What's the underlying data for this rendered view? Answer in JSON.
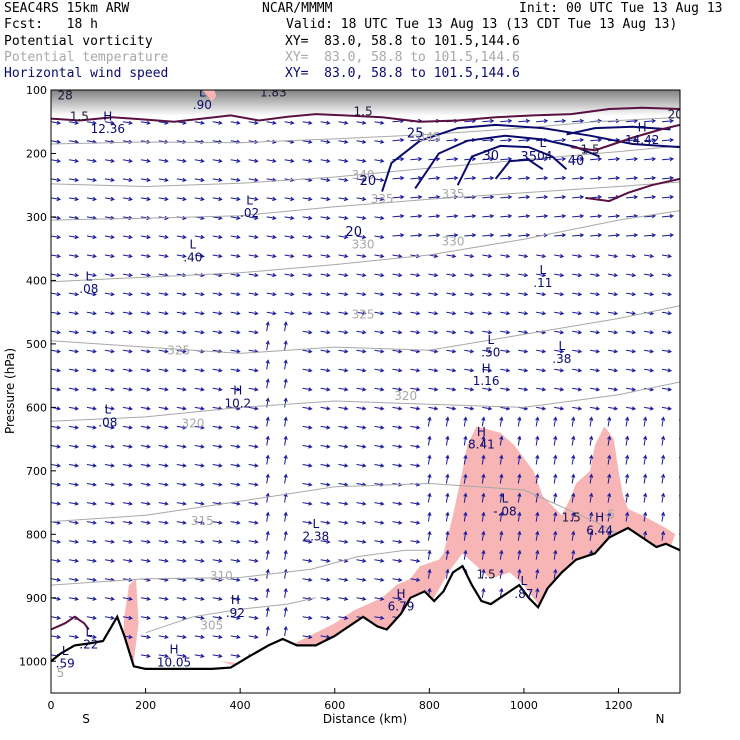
{
  "header": {
    "model": "SEAC4RS 15km ARW",
    "org": "NCAR/MMMM",
    "init": "Init: 00 UTC Tue 13 Aug 13",
    "fcst": "Fcst:   18 h",
    "valid": "Valid: 18 UTC Tue 13 Aug 13 (13 CDT Tue 13 Aug 13)",
    "fields": [
      {
        "name": "Potential vorticity",
        "xy": "XY=  83.0, 58.8 to 101.5,144.6",
        "color": "#000000"
      },
      {
        "name": "Potential temperature",
        "xy": "XY=  83.0, 58.8 to 101.5,144.6",
        "color": "#a8a8a8"
      },
      {
        "name": "Horizontal wind speed",
        "xy": "XY=  83.0, 58.8 to 101.5,144.6",
        "color": "#0a0a6e"
      }
    ]
  },
  "chart_data": {
    "type": "cross-section",
    "xlabel": "Distance (km)",
    "ylabel": "Pressure (hPa)",
    "xlim": [
      0,
      1330
    ],
    "ylim": [
      1050,
      100
    ],
    "x_ticks": [
      0,
      200,
      400,
      600,
      800,
      1000,
      1200
    ],
    "y_ticks": [
      100,
      200,
      300,
      400,
      500,
      600,
      700,
      800,
      900,
      1000
    ],
    "left_endpoint_label": "S",
    "right_endpoint_label": "N",
    "colors": {
      "theta": "#a8a8a8",
      "wind": "#0a0a6e",
      "pv": "#5a1040",
      "pv_shade": "#f7b5b5",
      "terrain": "#000000"
    },
    "theta_contours": [
      {
        "value": "345",
        "points": [
          [
            0,
            185
          ],
          [
            200,
            182
          ],
          [
            400,
            183
          ],
          [
            600,
            177
          ],
          [
            800,
            170
          ],
          [
            1000,
            160
          ],
          [
            1150,
            150
          ],
          [
            1330,
            143
          ]
        ]
      },
      {
        "value": "340",
        "points": [
          [
            0,
            248
          ],
          [
            200,
            252
          ],
          [
            400,
            247
          ],
          [
            600,
            237
          ],
          [
            800,
            223
          ],
          [
            1000,
            210
          ],
          [
            1200,
            197
          ],
          [
            1330,
            188
          ]
        ]
      },
      {
        "value": "335",
        "points": [
          [
            0,
            305
          ],
          [
            200,
            302
          ],
          [
            400,
            298
          ],
          [
            600,
            284
          ],
          [
            800,
            272
          ],
          [
            1000,
            262
          ],
          [
            1200,
            252
          ],
          [
            1330,
            245
          ]
        ]
      },
      {
        "value": "330",
        "points": [
          [
            0,
            402
          ],
          [
            200,
            395
          ],
          [
            400,
            388
          ],
          [
            600,
            375
          ],
          [
            800,
            360
          ],
          [
            1000,
            335
          ],
          [
            1200,
            305
          ],
          [
            1330,
            290
          ]
        ]
      },
      {
        "value": "325",
        "points": [
          [
            0,
            495
          ],
          [
            200,
            505
          ],
          [
            400,
            515
          ],
          [
            600,
            505
          ],
          [
            800,
            510
          ],
          [
            1000,
            485
          ],
          [
            1200,
            460
          ],
          [
            1330,
            440
          ]
        ]
      },
      {
        "value": "320",
        "points": [
          [
            0,
            622
          ],
          [
            200,
            615
          ],
          [
            400,
            600
          ],
          [
            600,
            590
          ],
          [
            800,
            595
          ],
          [
            1000,
            600
          ],
          [
            1200,
            580
          ],
          [
            1330,
            560
          ]
        ]
      },
      {
        "value": "315",
        "points": [
          [
            0,
            780
          ],
          [
            200,
            770
          ],
          [
            400,
            748
          ],
          [
            600,
            725
          ],
          [
            800,
            720
          ],
          [
            1000,
            730
          ],
          [
            1150,
            780
          ],
          [
            1200,
            800
          ]
        ]
      },
      {
        "value": "310",
        "points": [
          [
            0,
            880
          ],
          [
            200,
            870
          ],
          [
            400,
            868
          ],
          [
            550,
            855
          ],
          [
            650,
            835
          ],
          [
            750,
            825
          ],
          [
            800,
            825
          ]
        ]
      },
      {
        "value": "305",
        "points": [
          [
            200,
            955
          ],
          [
            300,
            930
          ],
          [
            400,
            918
          ],
          [
            500,
            910
          ],
          [
            560,
            900
          ]
        ]
      }
    ],
    "wind_contours": [
      {
        "value": "20",
        "points": [
          [
            700,
            260
          ],
          [
            720,
            215
          ],
          [
            780,
            180
          ],
          [
            860,
            160
          ],
          [
            940,
            155
          ],
          [
            1040,
            160
          ],
          [
            1140,
            172
          ],
          [
            1230,
            185
          ],
          [
            1330,
            190
          ]
        ]
      },
      {
        "value": "25",
        "points": [
          [
            770,
            255
          ],
          [
            820,
            200
          ],
          [
            880,
            180
          ],
          [
            960,
            172
          ],
          [
            1040,
            178
          ],
          [
            1110,
            190
          ],
          [
            1160,
            205
          ]
        ]
      },
      {
        "value": "30",
        "points": [
          [
            860,
            250
          ],
          [
            890,
            205
          ],
          [
            950,
            188
          ],
          [
            1010,
            190
          ],
          [
            1060,
            205
          ],
          [
            1090,
            225
          ]
        ]
      },
      {
        "value": "35",
        "points": [
          [
            940,
            240
          ],
          [
            970,
            212
          ],
          [
            1010,
            210
          ],
          [
            1040,
            225
          ]
        ]
      },
      {
        "value": "40",
        "points": [
          [
            1090,
            170
          ],
          [
            1150,
            160
          ],
          [
            1230,
            158
          ],
          [
            1310,
            162
          ]
        ]
      }
    ],
    "wind_contour_labels": [
      {
        "text": "20",
        "x": 670,
        "y": 250
      },
      {
        "text": "20",
        "x": 640,
        "y": 330
      },
      {
        "text": "25",
        "x": 770,
        "y": 175
      },
      {
        "text": "30",
        "x": 930,
        "y": 210
      },
      {
        "text": "35",
        "x": 1010,
        "y": 212
      },
      {
        "text": "40",
        "x": 1110,
        "y": 218
      }
    ],
    "theta_labels": [
      {
        "text": "345",
        "x": 800,
        "y": 180
      },
      {
        "text": "340",
        "x": 660,
        "y": 240
      },
      {
        "text": "335",
        "x": 850,
        "y": 270
      },
      {
        "text": "335",
        "x": 700,
        "y": 278
      },
      {
        "text": "330",
        "x": 660,
        "y": 350
      },
      {
        "text": "330",
        "x": 850,
        "y": 345
      },
      {
        "text": "325",
        "x": 660,
        "y": 460
      },
      {
        "text": "325",
        "x": 270,
        "y": 517
      },
      {
        "text": "320",
        "x": 750,
        "y": 588
      },
      {
        "text": "320",
        "x": 300,
        "y": 632
      },
      {
        "text": "315",
        "x": 320,
        "y": 785
      },
      {
        "text": "310",
        "x": 360,
        "y": 872
      },
      {
        "text": "305",
        "x": 340,
        "y": 950
      },
      {
        "text": "5",
        "x": 20,
        "y": 1025
      },
      {
        "text": "-5",
        "x": 1180,
        "y": 775
      }
    ],
    "pv_labels": [
      {
        "text": "1.5",
        "x": 60,
        "y": 148
      },
      {
        "text": "1.5",
        "x": 660,
        "y": 140
      },
      {
        "text": "1.5",
        "x": 1140,
        "y": 200
      },
      {
        "text": "1.5",
        "x": 1100,
        "y": 780
      },
      {
        "text": "1.5",
        "x": 920,
        "y": 870
      }
    ],
    "pv_shade_regions": [
      [
        [
          150,
          1000
        ],
        [
          155,
          930
        ],
        [
          165,
          880
        ],
        [
          180,
          870
        ],
        [
          185,
          940
        ],
        [
          175,
          1000
        ]
      ],
      [
        [
          360,
          1000
        ],
        [
          400,
          1010
        ],
        [
          450,
          990
        ],
        [
          520,
          970
        ],
        [
          600,
          940
        ],
        [
          640,
          920
        ],
        [
          700,
          900
        ],
        [
          730,
          880
        ],
        [
          760,
          870
        ],
        [
          780,
          850
        ],
        [
          820,
          840
        ],
        [
          830,
          830
        ],
        [
          850,
          770
        ],
        [
          870,
          700
        ],
        [
          880,
          660
        ],
        [
          900,
          630
        ],
        [
          950,
          640
        ],
        [
          980,
          660
        ],
        [
          1000,
          680
        ],
        [
          1020,
          700
        ],
        [
          1040,
          740
        ],
        [
          1080,
          770
        ],
        [
          1100,
          740
        ],
        [
          1110,
          720
        ],
        [
          1140,
          700
        ],
        [
          1150,
          660
        ],
        [
          1170,
          630
        ],
        [
          1190,
          650
        ],
        [
          1200,
          700
        ],
        [
          1210,
          740
        ],
        [
          1220,
          760
        ],
        [
          1250,
          770
        ],
        [
          1300,
          790
        ],
        [
          1320,
          800
        ],
        [
          1300,
          840
        ],
        [
          1260,
          830
        ],
        [
          1230,
          820
        ],
        [
          1200,
          830
        ],
        [
          1170,
          860
        ],
        [
          1120,
          900
        ],
        [
          1080,
          890
        ],
        [
          1040,
          920
        ],
        [
          1000,
          880
        ],
        [
          970,
          860
        ],
        [
          930,
          870
        ],
        [
          900,
          850
        ],
        [
          870,
          830
        ],
        [
          840,
          860
        ],
        [
          810,
          900
        ],
        [
          780,
          920
        ],
        [
          740,
          940
        ],
        [
          700,
          950
        ],
        [
          660,
          960
        ],
        [
          620,
          980
        ],
        [
          580,
          990
        ],
        [
          540,
          1000
        ],
        [
          480,
          1010
        ]
      ],
      [
        [
          320,
          100
        ],
        [
          330,
          108
        ],
        [
          340,
          118
        ],
        [
          350,
          110
        ],
        [
          345,
          100
        ]
      ]
    ],
    "pv_contours": [
      [
        [
          0,
          145
        ],
        [
          60,
          148
        ],
        [
          130,
          143
        ],
        [
          190,
          146
        ],
        [
          260,
          150
        ],
        [
          320,
          145
        ],
        [
          380,
          140
        ],
        [
          440,
          148
        ],
        [
          500,
          142
        ],
        [
          560,
          138
        ],
        [
          620,
          140
        ],
        [
          700,
          143
        ],
        [
          780,
          150
        ],
        [
          860,
          148
        ],
        [
          940,
          143
        ],
        [
          1020,
          140
        ],
        [
          1100,
          138
        ],
        [
          1180,
          130
        ],
        [
          1250,
          128
        ],
        [
          1330,
          130
        ]
      ],
      [
        [
          0,
          950
        ],
        [
          30,
          940
        ],
        [
          50,
          930
        ],
        [
          70,
          940
        ],
        [
          80,
          950
        ]
      ],
      [
        [
          1100,
          190
        ],
        [
          1150,
          195
        ],
        [
          1190,
          185
        ],
        [
          1230,
          175
        ],
        [
          1290,
          162
        ],
        [
          1330,
          155
        ]
      ],
      [
        [
          1130,
          270
        ],
        [
          1180,
          275
        ],
        [
          1220,
          262
        ],
        [
          1270,
          250
        ],
        [
          1330,
          240
        ]
      ]
    ],
    "terrain": [
      [
        0,
        1000
      ],
      [
        20,
        988
      ],
      [
        50,
        975
      ],
      [
        80,
        972
      ],
      [
        110,
        968
      ],
      [
        140,
        930
      ],
      [
        155,
        960
      ],
      [
        175,
        1008
      ],
      [
        200,
        1012
      ],
      [
        260,
        1012
      ],
      [
        340,
        1012
      ],
      [
        380,
        1010
      ],
      [
        420,
        992
      ],
      [
        460,
        975
      ],
      [
        490,
        965
      ],
      [
        520,
        975
      ],
      [
        560,
        975
      ],
      [
        600,
        960
      ],
      [
        620,
        950
      ],
      [
        660,
        930
      ],
      [
        690,
        945
      ],
      [
        710,
        950
      ],
      [
        740,
        925
      ],
      [
        760,
        900
      ],
      [
        790,
        890
      ],
      [
        810,
        905
      ],
      [
        830,
        890
      ],
      [
        850,
        860
      ],
      [
        870,
        850
      ],
      [
        890,
        880
      ],
      [
        910,
        905
      ],
      [
        930,
        910
      ],
      [
        960,
        895
      ],
      [
        990,
        880
      ],
      [
        1010,
        900
      ],
      [
        1030,
        915
      ],
      [
        1050,
        885
      ],
      [
        1080,
        860
      ],
      [
        1110,
        840
      ],
      [
        1150,
        830
      ],
      [
        1180,
        805
      ],
      [
        1220,
        790
      ],
      [
        1250,
        805
      ],
      [
        1280,
        820
      ],
      [
        1300,
        815
      ],
      [
        1330,
        825
      ]
    ],
    "extrema": [
      {
        "type": "H",
        "value": "12.36",
        "x": 120,
        "y": 168
      },
      {
        "type": "L",
        "value": ".90",
        "x": 320,
        "y": 130
      },
      {
        "type": "L",
        "value": ".04",
        "x": 1040,
        "y": 210
      },
      {
        "type": "H",
        "value": "14.42",
        "x": 1250,
        "y": 185
      },
      {
        "type": "L",
        "value": ".02",
        "x": 420,
        "y": 300
      },
      {
        "type": "L",
        "value": ".40",
        "x": 300,
        "y": 370
      },
      {
        "type": "L",
        "value": ".08",
        "x": 80,
        "y": 420
      },
      {
        "type": "L",
        "value": ".11",
        "x": 1040,
        "y": 410
      },
      {
        "type": "L",
        "value": ".50",
        "x": 930,
        "y": 520
      },
      {
        "type": "L",
        "value": ".38",
        "x": 1080,
        "y": 530
      },
      {
        "type": "H",
        "value": "1.16",
        "x": 920,
        "y": 565
      },
      {
        "type": "L",
        "value": ".08",
        "x": 120,
        "y": 630
      },
      {
        "type": "H",
        "value": "10.2",
        "x": 395,
        "y": 600
      },
      {
        "type": "H",
        "value": "8.41",
        "x": 910,
        "y": 665
      },
      {
        "type": "L",
        "value": "-.08",
        "x": 960,
        "y": 770
      },
      {
        "type": "L",
        "value": "2.38",
        "x": 560,
        "y": 810
      },
      {
        "type": "H",
        "value": "6.44",
        "x": 1160,
        "y": 800
      },
      {
        "type": "L",
        "value": ".87",
        "x": 1000,
        "y": 900
      },
      {
        "type": "H",
        "value": "6.79",
        "x": 740,
        "y": 920
      },
      {
        "type": "H",
        "value": ".92",
        "x": 390,
        "y": 930
      },
      {
        "type": "L",
        "value": ".22",
        "x": 80,
        "y": 980
      },
      {
        "type": "H",
        "value": "10.05",
        "x": 260,
        "y": 1008
      },
      {
        "type": "L",
        "value": ".59",
        "x": 30,
        "y": 1010
      }
    ],
    "top_labels": [
      {
        "text": "28",
        "x": 30,
        "y": 115
      },
      {
        "text": "1.83",
        "x": 470,
        "y": 110
      },
      {
        "text": "20",
        "x": 1320,
        "y": 145
      }
    ]
  }
}
